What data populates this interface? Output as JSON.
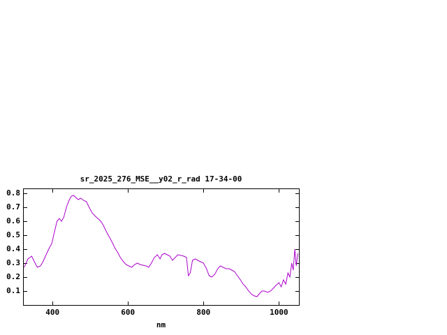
{
  "window": {
    "background_color": "#ffffff",
    "text_color": "#000000"
  },
  "chart_data": {
    "type": "line",
    "title": "sr_2025_276_MSE__y02_r_rad 17-34-00",
    "xlabel": "nm",
    "ylabel": "",
    "xlim": [
      322,
      1053
    ],
    "ylim": [
      0,
      0.835
    ],
    "x_ticks": [
      400,
      600,
      800,
      1000
    ],
    "y_ticks": [
      0.1,
      0.2,
      0.3,
      0.4,
      0.5,
      0.6,
      0.7,
      0.8
    ],
    "grid": false,
    "legend": "none",
    "line_color": "#aa00cc",
    "border_color": "#000000",
    "series": [
      {
        "name": "sr_2025_276_MSE__y02_r_rad",
        "x": [
          325,
          335,
          345,
          352,
          360,
          368,
          375,
          383,
          390,
          398,
          405,
          412,
          418,
          424,
          430,
          437,
          444,
          450,
          456,
          462,
          468,
          475,
          482,
          490,
          497,
          505,
          512,
          520,
          528,
          535,
          542,
          550,
          558,
          565,
          572,
          580,
          588,
          595,
          602,
          610,
          618,
          625,
          632,
          640,
          648,
          655,
          662,
          670,
          678,
          685,
          690,
          697,
          704,
          711,
          718,
          725,
          732,
          740,
          748,
          755,
          760,
          765,
          771,
          778,
          785,
          792,
          800,
          808,
          815,
          822,
          830,
          838,
          845,
          852,
          860,
          868,
          875,
          882,
          890,
          898,
          905,
          912,
          920,
          928,
          935,
          942,
          948,
          955,
          962,
          970,
          978,
          985,
          992,
          1000,
          1006,
          1012,
          1018,
          1024,
          1029,
          1034,
          1038,
          1042,
          1046,
          1050
        ],
        "y": [
          0.27,
          0.33,
          0.35,
          0.31,
          0.27,
          0.28,
          0.31,
          0.36,
          0.4,
          0.44,
          0.52,
          0.6,
          0.62,
          0.6,
          0.63,
          0.7,
          0.75,
          0.78,
          0.785,
          0.77,
          0.755,
          0.765,
          0.75,
          0.74,
          0.7,
          0.66,
          0.64,
          0.62,
          0.6,
          0.57,
          0.53,
          0.49,
          0.45,
          0.41,
          0.38,
          0.34,
          0.31,
          0.29,
          0.28,
          0.27,
          0.29,
          0.3,
          0.29,
          0.285,
          0.28,
          0.27,
          0.3,
          0.34,
          0.36,
          0.33,
          0.36,
          0.37,
          0.36,
          0.35,
          0.32,
          0.34,
          0.36,
          0.355,
          0.35,
          0.34,
          0.21,
          0.23,
          0.32,
          0.33,
          0.32,
          0.31,
          0.3,
          0.26,
          0.21,
          0.2,
          0.22,
          0.26,
          0.28,
          0.27,
          0.26,
          0.26,
          0.25,
          0.24,
          0.21,
          0.18,
          0.15,
          0.13,
          0.1,
          0.075,
          0.065,
          0.06,
          0.08,
          0.1,
          0.1,
          0.09,
          0.1,
          0.12,
          0.14,
          0.16,
          0.13,
          0.18,
          0.15,
          0.23,
          0.2,
          0.3,
          0.25,
          0.4,
          0.28,
          0.37
        ]
      }
    ]
  }
}
